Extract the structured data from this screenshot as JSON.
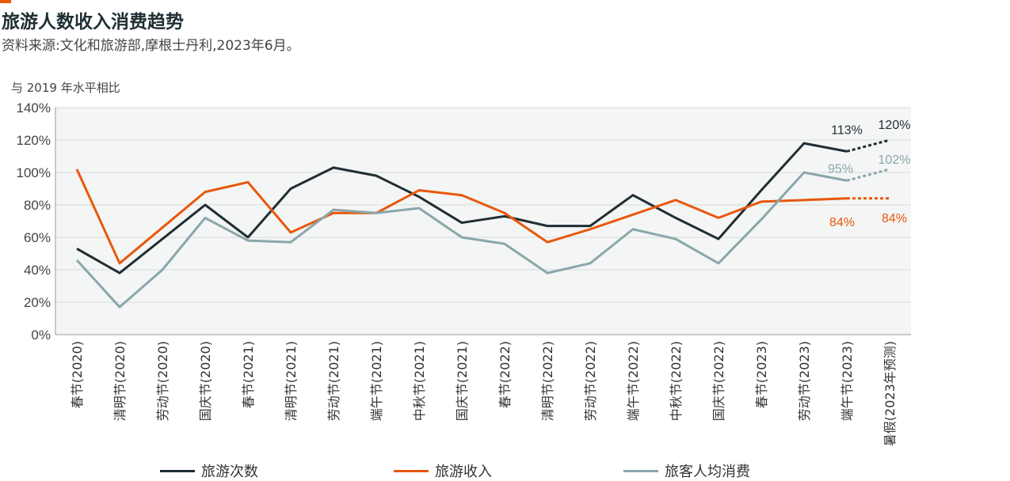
{
  "title": "旅游人数收入消费趋势",
  "subtitle": "资料来源:文化和旅游部,摩根士丹利,2023年6月。",
  "colors": {
    "accent": "#e8580c",
    "grid": "#d8dcdc",
    "plot_bg": "#f4f5f5"
  },
  "chart_data": {
    "type": "line",
    "ylabel": "与 2019 年水平相比",
    "ylim": [
      0,
      140
    ],
    "yticks": [
      "0%",
      "20%",
      "40%",
      "60%",
      "80%",
      "100%",
      "120%",
      "140%"
    ],
    "grid": true,
    "legend_position": "bottom",
    "categories": [
      "春节(2020)",
      "清明节(2020)",
      "劳动节(2020)",
      "国庆节(2020)",
      "春节(2021)",
      "清明节(2021)",
      "劳动节(2021)",
      "端午节(2021)",
      "中秋节(2021)",
      "国庆节(2021)",
      "春节(2022)",
      "清明节(2022)",
      "劳动节(2022)",
      "端午节(2022)",
      "中秋节(2022)",
      "国庆节(2022)",
      "春节(2023)",
      "劳动节(2023)",
      "端午节(2023)",
      "暑假(2023年预测)"
    ],
    "series": [
      {
        "name": "旅游次数",
        "color": "#1f2f33",
        "values": [
          53,
          38,
          59,
          80,
          60,
          90,
          103,
          98,
          85,
          69,
          73,
          67,
          67,
          86,
          72,
          59,
          89,
          118,
          113,
          120
        ]
      },
      {
        "name": "旅游收入",
        "color": "#e8580c",
        "values": [
          102,
          44,
          66,
          88,
          94,
          63,
          75,
          75,
          89,
          86,
          75,
          57,
          65,
          74,
          83,
          72,
          82,
          83,
          84,
          84
        ]
      },
      {
        "name": "旅客人均消费",
        "color": "#8aa7ab",
        "values": [
          46,
          17,
          40,
          72,
          58,
          57,
          77,
          75,
          78,
          60,
          56,
          38,
          44,
          65,
          59,
          44,
          71,
          100,
          95,
          102
        ]
      }
    ],
    "forecast_from_index": 18,
    "annotations": [
      {
        "series": 0,
        "index": 18,
        "text": "113%"
      },
      {
        "series": 0,
        "index": 19,
        "text": "120%"
      },
      {
        "series": 2,
        "index": 18,
        "text": "95%"
      },
      {
        "series": 2,
        "index": 19,
        "text": "102%"
      },
      {
        "series": 1,
        "index": 18,
        "text": "84%"
      },
      {
        "series": 1,
        "index": 19,
        "text": "84%"
      }
    ]
  }
}
